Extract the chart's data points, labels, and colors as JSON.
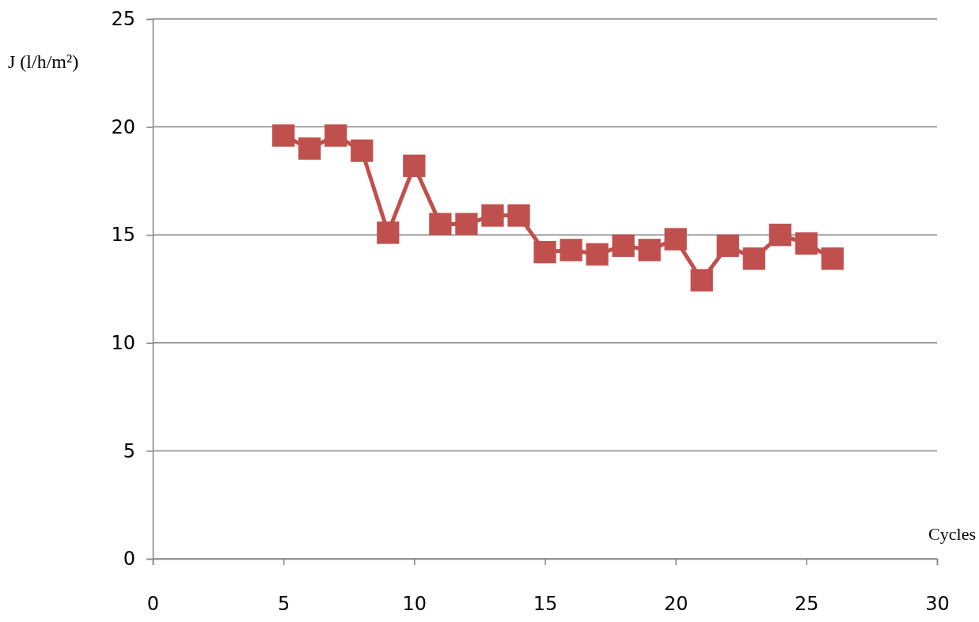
{
  "chart_data": {
    "type": "line",
    "xlabel": "Cycles",
    "ylabel": "J  (l/h/m²)",
    "x": [
      5,
      6,
      7,
      8,
      9,
      10,
      11,
      12,
      13,
      14,
      15,
      16,
      17,
      18,
      19,
      20,
      21,
      22,
      23,
      24,
      25,
      26
    ],
    "series": [
      {
        "color": "#c0504d",
        "values": [
          19.6,
          19.0,
          19.6,
          18.9,
          15.1,
          18.2,
          15.5,
          15.5,
          15.9,
          15.9,
          14.2,
          14.3,
          14.1,
          14.5,
          14.3,
          14.8,
          12.9,
          14.5,
          13.9,
          15.0,
          14.6,
          13.9
        ]
      }
    ],
    "xlim": [
      0,
      30
    ],
    "xticks": [
      0,
      5,
      10,
      15,
      20,
      25,
      30
    ],
    "ylim": [
      0,
      25
    ],
    "yticks": [
      0,
      5,
      10,
      15,
      20,
      25
    ],
    "grid": "y",
    "marker": "square",
    "line_style": "solid"
  }
}
